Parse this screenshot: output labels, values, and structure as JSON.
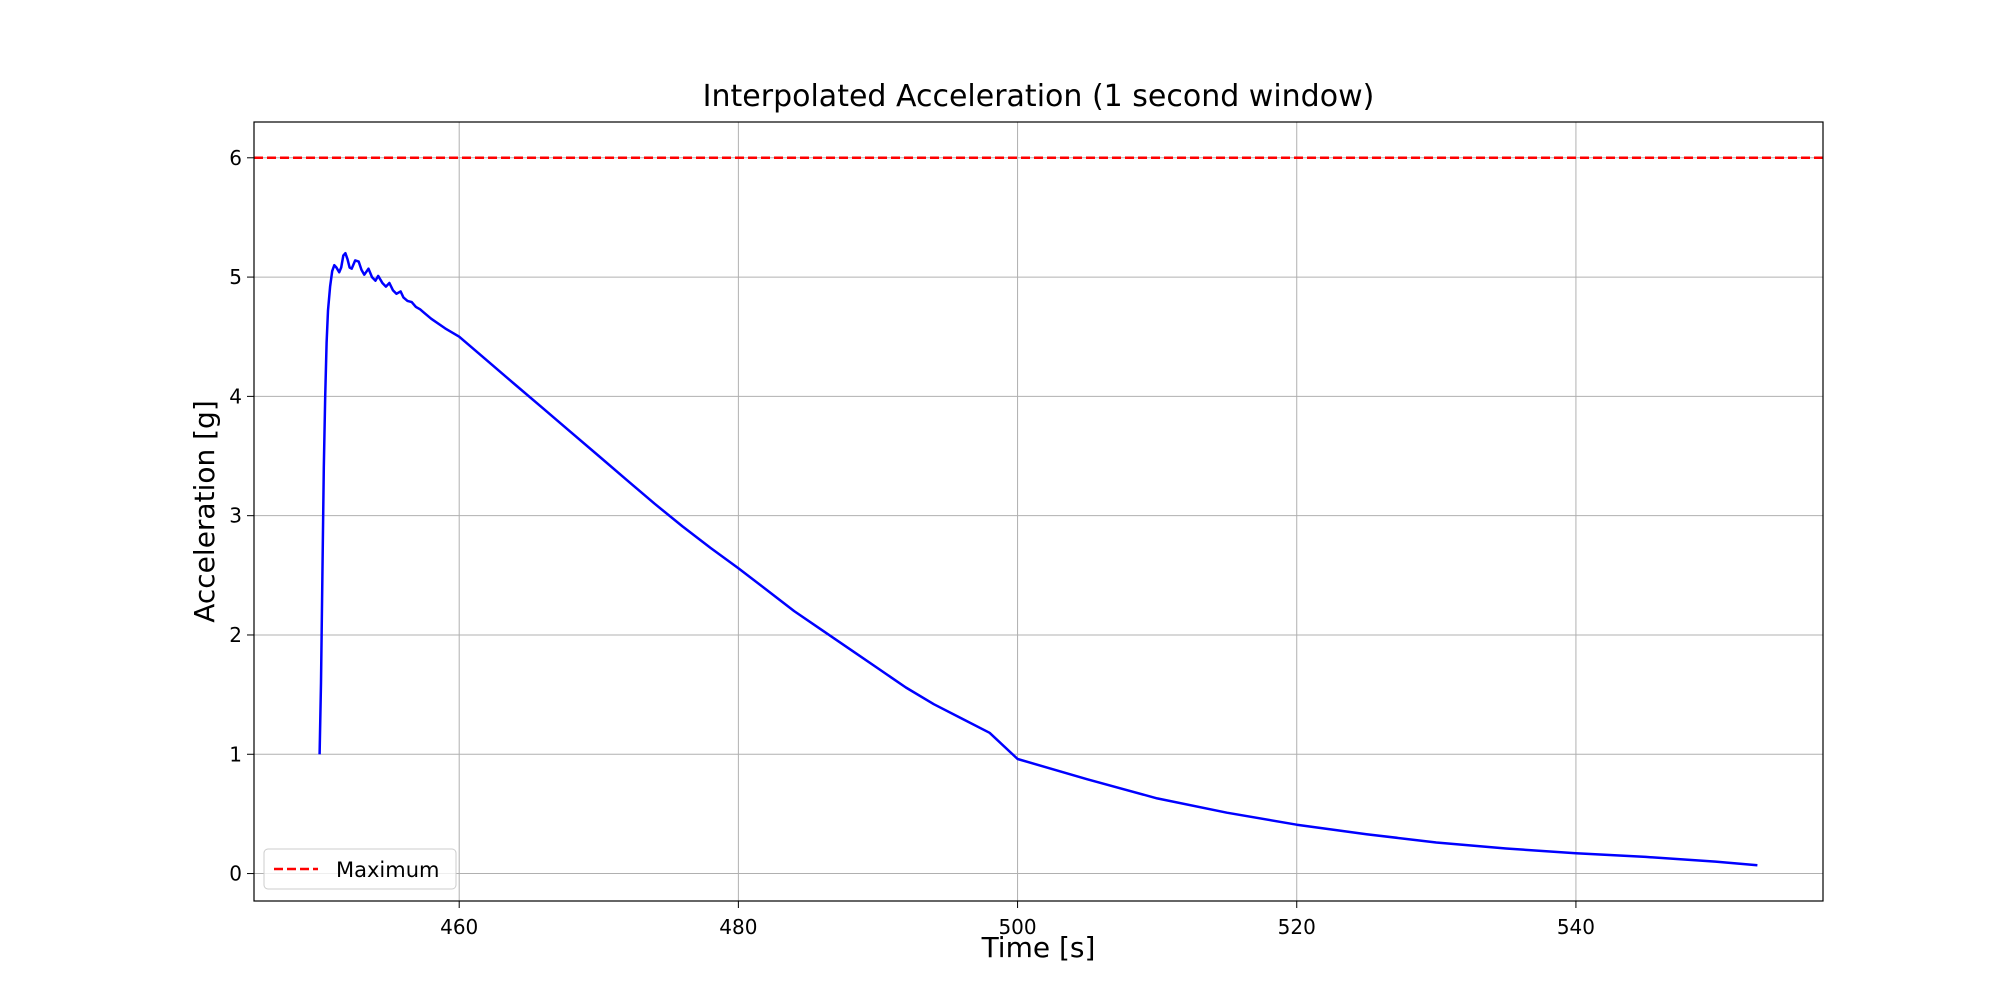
{
  "chart_data": {
    "type": "line",
    "title": "Interpolated Acceleration (1 second window)",
    "xlabel": "Time [s]",
    "ylabel": "Acceleration [g]",
    "xlim": [
      445.3,
      557.7
    ],
    "ylim": [
      -0.23,
      6.3
    ],
    "xticks": [
      460,
      480,
      500,
      520,
      540
    ],
    "yticks": [
      0,
      1,
      2,
      3,
      4,
      5,
      6
    ],
    "grid": true,
    "legend": {
      "position": "lower-left",
      "entries": [
        "Maximum"
      ]
    },
    "colors": {
      "series": "#0000ff",
      "maximum": "#ff0000",
      "grid": "#b0b0b0",
      "frame": "#000000"
    },
    "reference_lines": [
      {
        "name": "Maximum",
        "y": 6.0,
        "style": "dashed",
        "color": "#ff0000"
      }
    ],
    "series": [
      {
        "color": "#0000ff",
        "x": [
          450.0,
          450.1,
          450.2,
          450.3,
          450.4,
          450.5,
          450.6,
          450.75,
          450.9,
          451.05,
          451.2,
          451.4,
          451.55,
          451.7,
          451.85,
          452.0,
          452.15,
          452.3,
          452.55,
          452.8,
          453.0,
          453.2,
          453.5,
          453.75,
          454.0,
          454.2,
          454.5,
          454.75,
          455.0,
          455.25,
          455.5,
          455.8,
          456.0,
          456.3,
          456.6,
          456.9,
          457.2,
          457.5,
          458.0,
          459.0,
          460.0,
          462.0,
          464.0,
          466.0,
          468.0,
          470.0,
          472.0,
          474.0,
          476.0,
          478.0,
          480.0,
          482.0,
          484.0,
          486.0,
          488.0,
          490.0,
          492.0,
          494.0,
          496.0,
          498.0,
          500.0,
          505.0,
          510.0,
          515.0,
          520.0,
          525.0,
          530.0,
          535.0,
          540.0,
          545.0,
          550.0,
          553.0
        ],
        "y": [
          1.0,
          1.6,
          2.5,
          3.4,
          4.0,
          4.45,
          4.72,
          4.92,
          5.05,
          5.1,
          5.08,
          5.04,
          5.08,
          5.18,
          5.2,
          5.15,
          5.08,
          5.07,
          5.14,
          5.13,
          5.06,
          5.02,
          5.07,
          5.0,
          4.97,
          5.01,
          4.95,
          4.92,
          4.95,
          4.89,
          4.86,
          4.88,
          4.83,
          4.8,
          4.79,
          4.75,
          4.73,
          4.7,
          4.65,
          4.57,
          4.5,
          4.3,
          4.1,
          3.9,
          3.7,
          3.5,
          3.3,
          3.1,
          2.91,
          2.73,
          2.56,
          2.38,
          2.2,
          2.04,
          1.88,
          1.72,
          1.56,
          1.42,
          1.3,
          1.18,
          0.96,
          0.79,
          0.63,
          0.51,
          0.41,
          0.33,
          0.26,
          0.21,
          0.17,
          0.14,
          0.1,
          0.07
        ]
      }
    ]
  }
}
